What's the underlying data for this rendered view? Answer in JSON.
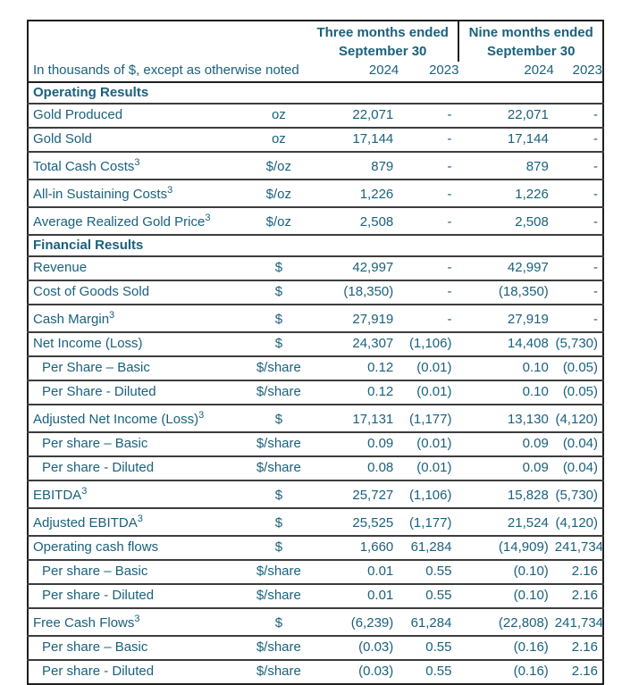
{
  "colors": {
    "text_teal": "#1A617D",
    "border_strong": "#1F1F1F",
    "border_row": "#3D3D3D",
    "background": "#FFFFFF"
  },
  "table": {
    "note": "In thousands of $, except as otherwise noted",
    "period_headers": [
      {
        "line1": "Three months ended",
        "line2": "September 30"
      },
      {
        "line1": "Nine months ended",
        "line2": "September 30"
      }
    ],
    "year_columns": [
      "2024",
      "2023",
      "2024",
      "2023"
    ],
    "sections": [
      {
        "title": "Operating Results",
        "rows": [
          {
            "label": "Gold Produced",
            "sup": "",
            "unit": "oz",
            "indent": false,
            "values": [
              "22,071",
              "-",
              "22,071",
              "-"
            ]
          },
          {
            "label": "Gold Sold",
            "sup": "",
            "unit": "oz",
            "indent": false,
            "values": [
              "17,144",
              "-",
              "17,144",
              "-"
            ]
          },
          {
            "label": "Total Cash Costs",
            "sup": "3",
            "unit": "$/oz",
            "indent": false,
            "values": [
              "879",
              "-",
              "879",
              "-"
            ]
          },
          {
            "label": "All-in Sustaining Costs",
            "sup": "3",
            "unit": "$/oz",
            "indent": false,
            "values": [
              "1,226",
              "-",
              "1,226",
              "-"
            ]
          },
          {
            "label": "Average Realized Gold Price",
            "sup": "3",
            "unit": "$/oz",
            "indent": false,
            "values": [
              "2,508",
              "-",
              "2,508",
              "-"
            ]
          }
        ]
      },
      {
        "title": "Financial Results",
        "rows": [
          {
            "label": "Revenue",
            "sup": "",
            "unit": "$",
            "indent": false,
            "values": [
              "42,997",
              "-",
              "42,997",
              "-"
            ]
          },
          {
            "label": "Cost of Goods Sold",
            "sup": "",
            "unit": "$",
            "indent": false,
            "values": [
              "(18,350)",
              "-",
              "(18,350)",
              "-"
            ]
          },
          {
            "label": "Cash Margin",
            "sup": "3",
            "unit": "$",
            "indent": false,
            "values": [
              "27,919",
              "-",
              "27,919",
              "-"
            ]
          },
          {
            "label": "Net Income (Loss)",
            "sup": "",
            "unit": "$",
            "indent": false,
            "values": [
              "24,307",
              "(1,106)",
              "14,408",
              "(5,730)"
            ]
          },
          {
            "label": "Per Share – Basic",
            "sup": "",
            "unit": "$/share",
            "indent": true,
            "values": [
              "0.12",
              "(0.01)",
              "0.10",
              "(0.05)"
            ]
          },
          {
            "label": "Per Share - Diluted",
            "sup": "",
            "unit": "$/share",
            "indent": true,
            "values": [
              "0.12",
              "(0.01)",
              "0.10",
              "(0.05)"
            ]
          },
          {
            "label": "Adjusted Net Income (Loss)",
            "sup": "3",
            "unit": "$",
            "indent": false,
            "values": [
              "17,131",
              "(1,177)",
              "13,130",
              "(4,120)"
            ]
          },
          {
            "label": "Per share – Basic",
            "sup": "",
            "unit": "$/share",
            "indent": true,
            "values": [
              "0.09",
              "(0.01)",
              "0.09",
              "(0.04)"
            ]
          },
          {
            "label": "Per share - Diluted",
            "sup": "",
            "unit": "$/share",
            "indent": true,
            "values": [
              "0.08",
              "(0.01)",
              "0.09",
              "(0.04)"
            ]
          },
          {
            "label": "EBITDA",
            "sup": "3",
            "unit": "$",
            "indent": false,
            "values": [
              "25,727",
              "(1,106)",
              "15,828",
              "(5,730)"
            ]
          },
          {
            "label": "Adjusted EBITDA",
            "sup": "3",
            "unit": "$",
            "indent": false,
            "values": [
              "25,525",
              "(1,177)",
              "21,524",
              "(4,120)"
            ]
          },
          {
            "label": "Operating cash flows",
            "sup": "",
            "unit": "$",
            "indent": false,
            "values": [
              "1,660",
              "61,284",
              "(14,909)",
              "241,734"
            ]
          },
          {
            "label": "Per share – Basic",
            "sup": "",
            "unit": "$/share",
            "indent": true,
            "values": [
              "0.01",
              "0.55",
              "(0.10)",
              "2.16"
            ]
          },
          {
            "label": "Per share - Diluted",
            "sup": "",
            "unit": "$/share",
            "indent": true,
            "values": [
              "0.01",
              "0.55",
              "(0.10)",
              "2.16"
            ]
          },
          {
            "label": "Free Cash Flows",
            "sup": "3",
            "unit": "$",
            "indent": false,
            "values": [
              "(6,239)",
              "61,284",
              "(22,808)",
              "241,734"
            ]
          },
          {
            "label": "Per share – Basic",
            "sup": "",
            "unit": "$/share",
            "indent": true,
            "values": [
              "(0.03)",
              "0.55",
              "(0.16)",
              "2.16"
            ]
          },
          {
            "label": "Per share - Diluted",
            "sup": "",
            "unit": "$/share",
            "indent": true,
            "values": [
              "(0.03)",
              "0.55",
              "(0.16)",
              "2.16"
            ]
          }
        ]
      }
    ]
  }
}
